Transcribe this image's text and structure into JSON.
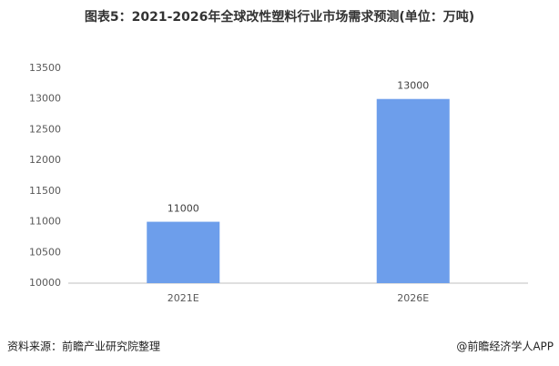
{
  "chart_data": {
    "type": "bar",
    "title": "图表5：2021-2026年全球改性塑料行业市场需求预测(单位：万吨)",
    "categories": [
      "2021E",
      "2026E"
    ],
    "values": [
      11000,
      13000
    ],
    "color": "#6d9eeb",
    "ylim": [
      10000,
      13500
    ],
    "yticks": [
      10000,
      10500,
      11000,
      11500,
      12000,
      12500,
      13000,
      13500
    ],
    "grid": false,
    "source": "资料来源：前瞻产业研究院整理",
    "credit": "@前瞻经济学人APP"
  }
}
